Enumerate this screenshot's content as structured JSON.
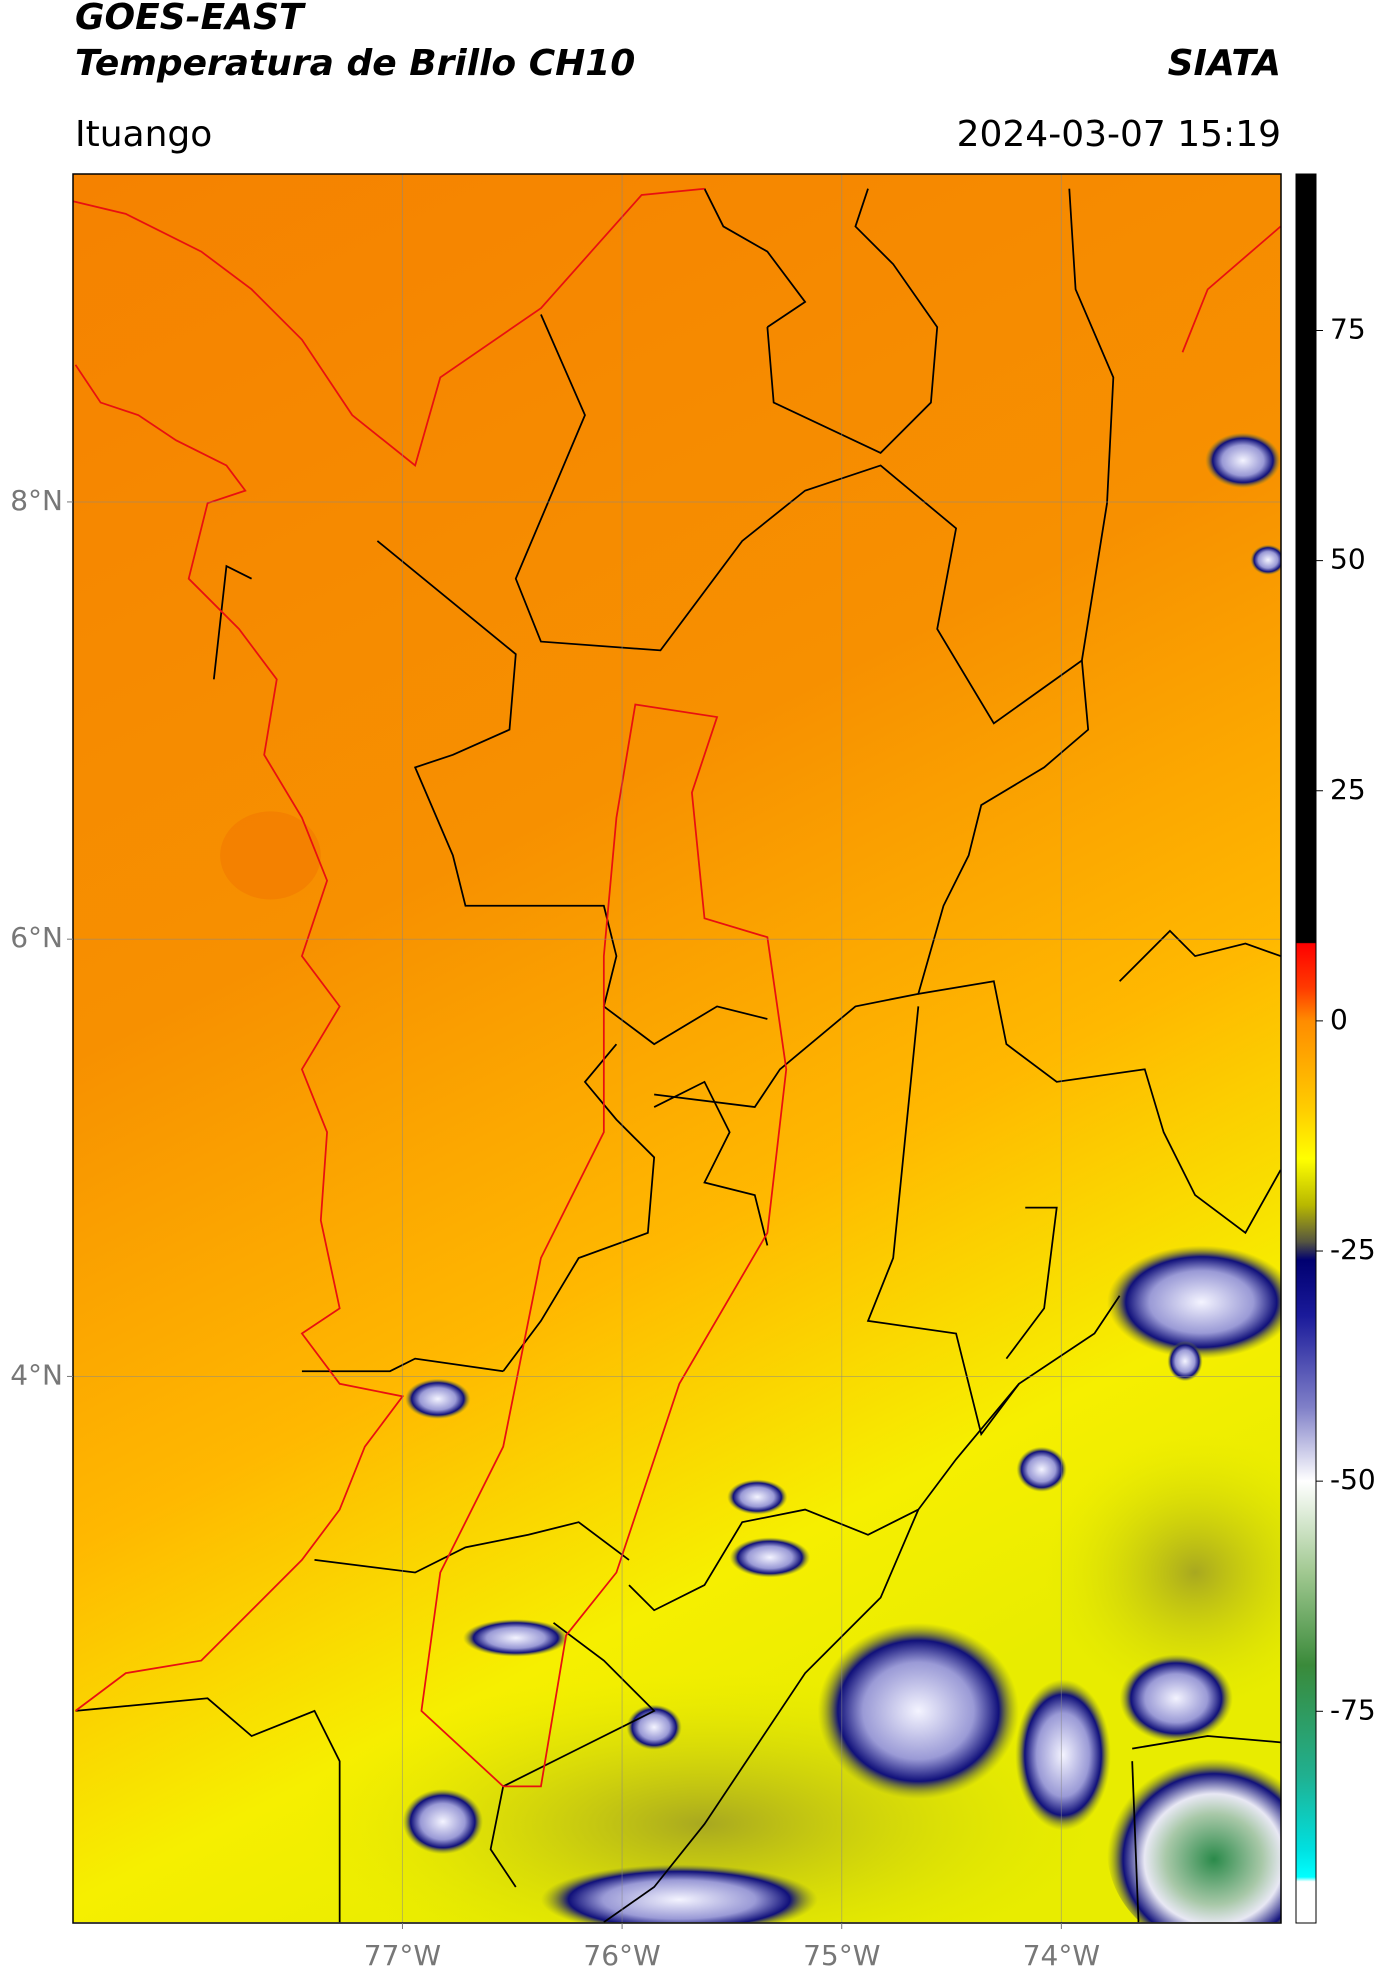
{
  "header": {
    "title": "GOES-EAST",
    "subtitle": "Temperatura de Brillo CH10",
    "credit": "SIATA",
    "region": "Ituango",
    "timestamp": "2024-03-07 15:19"
  },
  "map": {
    "xlim": [
      -78.5,
      -73
    ],
    "ylim": [
      1.5,
      9.5
    ],
    "xticks": [
      {
        "value": -77,
        "label": "77°W"
      },
      {
        "value": -76,
        "label": "76°W"
      },
      {
        "value": -75,
        "label": "75°W"
      },
      {
        "value": -74,
        "label": "74°W"
      }
    ],
    "yticks": [
      {
        "value": 8,
        "label": "8°N"
      },
      {
        "value": 6,
        "label": "6°N"
      },
      {
        "value": 4,
        "label": "4°N"
      }
    ],
    "grid": true
  },
  "colorbar": {
    "lim": [
      -98,
      92
    ],
    "ticks": [
      75,
      50,
      25,
      0,
      -25,
      -50,
      -75
    ],
    "colorscale": [
      [
        92,
        "#000000"
      ],
      [
        8.5,
        "#000000"
      ],
      [
        8.4,
        "#ff0000"
      ],
      [
        3.6,
        "#ff3a00"
      ],
      [
        0,
        "#ff8c00"
      ],
      [
        -10,
        "#ffd000"
      ],
      [
        -15,
        "#ffff00"
      ],
      [
        -20,
        "#b8b800"
      ],
      [
        -24,
        "#555540"
      ],
      [
        -26,
        "#000070"
      ],
      [
        -32,
        "#1a1a9a"
      ],
      [
        -42,
        "#8080c8"
      ],
      [
        -50,
        "#ffffff"
      ],
      [
        -60,
        "#a0c890"
      ],
      [
        -70,
        "#3a8a3a"
      ],
      [
        -82,
        "#20b090"
      ],
      [
        -90,
        "#00e0e0"
      ],
      [
        -93,
        "#00ffff"
      ],
      [
        -93.5,
        "#ffffff"
      ],
      [
        -98,
        "#ffffff"
      ]
    ]
  }
}
